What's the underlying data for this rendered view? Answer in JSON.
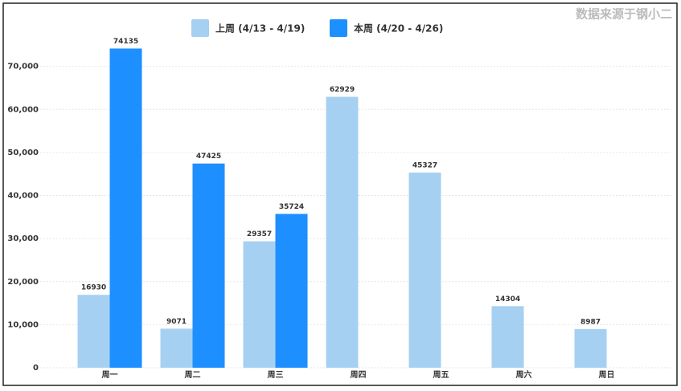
{
  "chart_data": {
    "type": "bar",
    "source": "数据来源于钢小二",
    "categories": [
      "周一",
      "周二",
      "周三",
      "周四",
      "周五",
      "周六",
      "周日"
    ],
    "series": [
      {
        "name": "上周 (4/13 - 4/19)",
        "color": "#a6d0f2",
        "values": [
          16930,
          9071,
          29357,
          62929,
          45327,
          14304,
          8987
        ]
      },
      {
        "name": "本周 (4/20 - 4/26)",
        "color": "#1e8fff",
        "values": [
          74135,
          47425,
          35724,
          null,
          null,
          null,
          null
        ]
      }
    ],
    "ylim": [
      0,
      80000
    ],
    "yticks": [
      0,
      {
        "value": 10000,
        "label": "10,000"
      },
      {
        "value": 20000,
        "label": "20,000"
      },
      {
        "value": 30000,
        "label": "30,000"
      },
      {
        "value": 40000,
        "label": "40,000"
      },
      {
        "value": 50000,
        "label": "50,000"
      },
      {
        "value": 60000,
        "label": "60,000"
      },
      {
        "value": 70000,
        "label": "70,000"
      }
    ],
    "grid": true,
    "legend": "top"
  }
}
